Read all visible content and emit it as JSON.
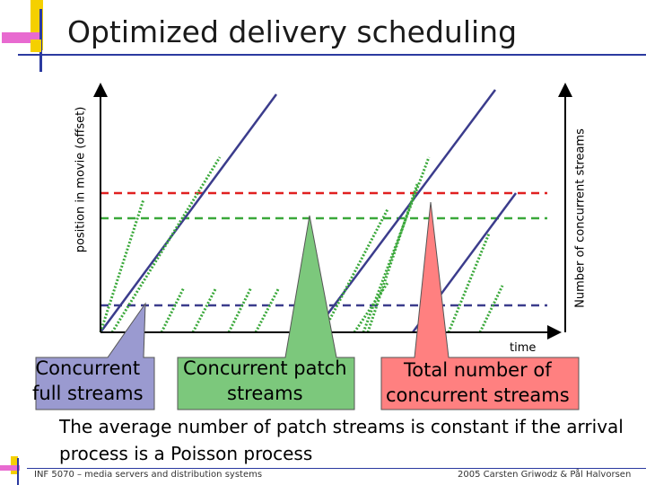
{
  "slide": {
    "title": "Optimized delivery scheduling",
    "y_axis_left_label": "position in movie (offset)",
    "y_axis_right_label": "Number of concurrent streams",
    "x_axis_label": "time",
    "callouts": {
      "full": [
        "Concurrent",
        "full streams"
      ],
      "patch": [
        "Concurrent patch",
        "streams"
      ],
      "total": [
        "Total number of",
        "concurrent streams"
      ]
    },
    "caption": "The average number of patch streams is constant if the arrival process is a Poisson process",
    "footer_left": "INF 5070 – media servers and distribution systems",
    "footer_right": "2005  Carsten Griwodz & Pål Halvorsen"
  },
  "colors": {
    "full_stream": "#3b3c8c",
    "patch_stream": "#3aa83a",
    "total_level": "#e02020",
    "callout_full": "#9a9ad0",
    "callout_patch": "#7cc87c",
    "callout_total": "#ff8080",
    "logo_yellow": "#f5d000",
    "logo_magenta": "#e040c0",
    "logo_blue": "#2b3aa0"
  },
  "icons": {
    "logo": "slide-template-logo-icon",
    "footer_logo": "footer-logo-icon"
  }
}
